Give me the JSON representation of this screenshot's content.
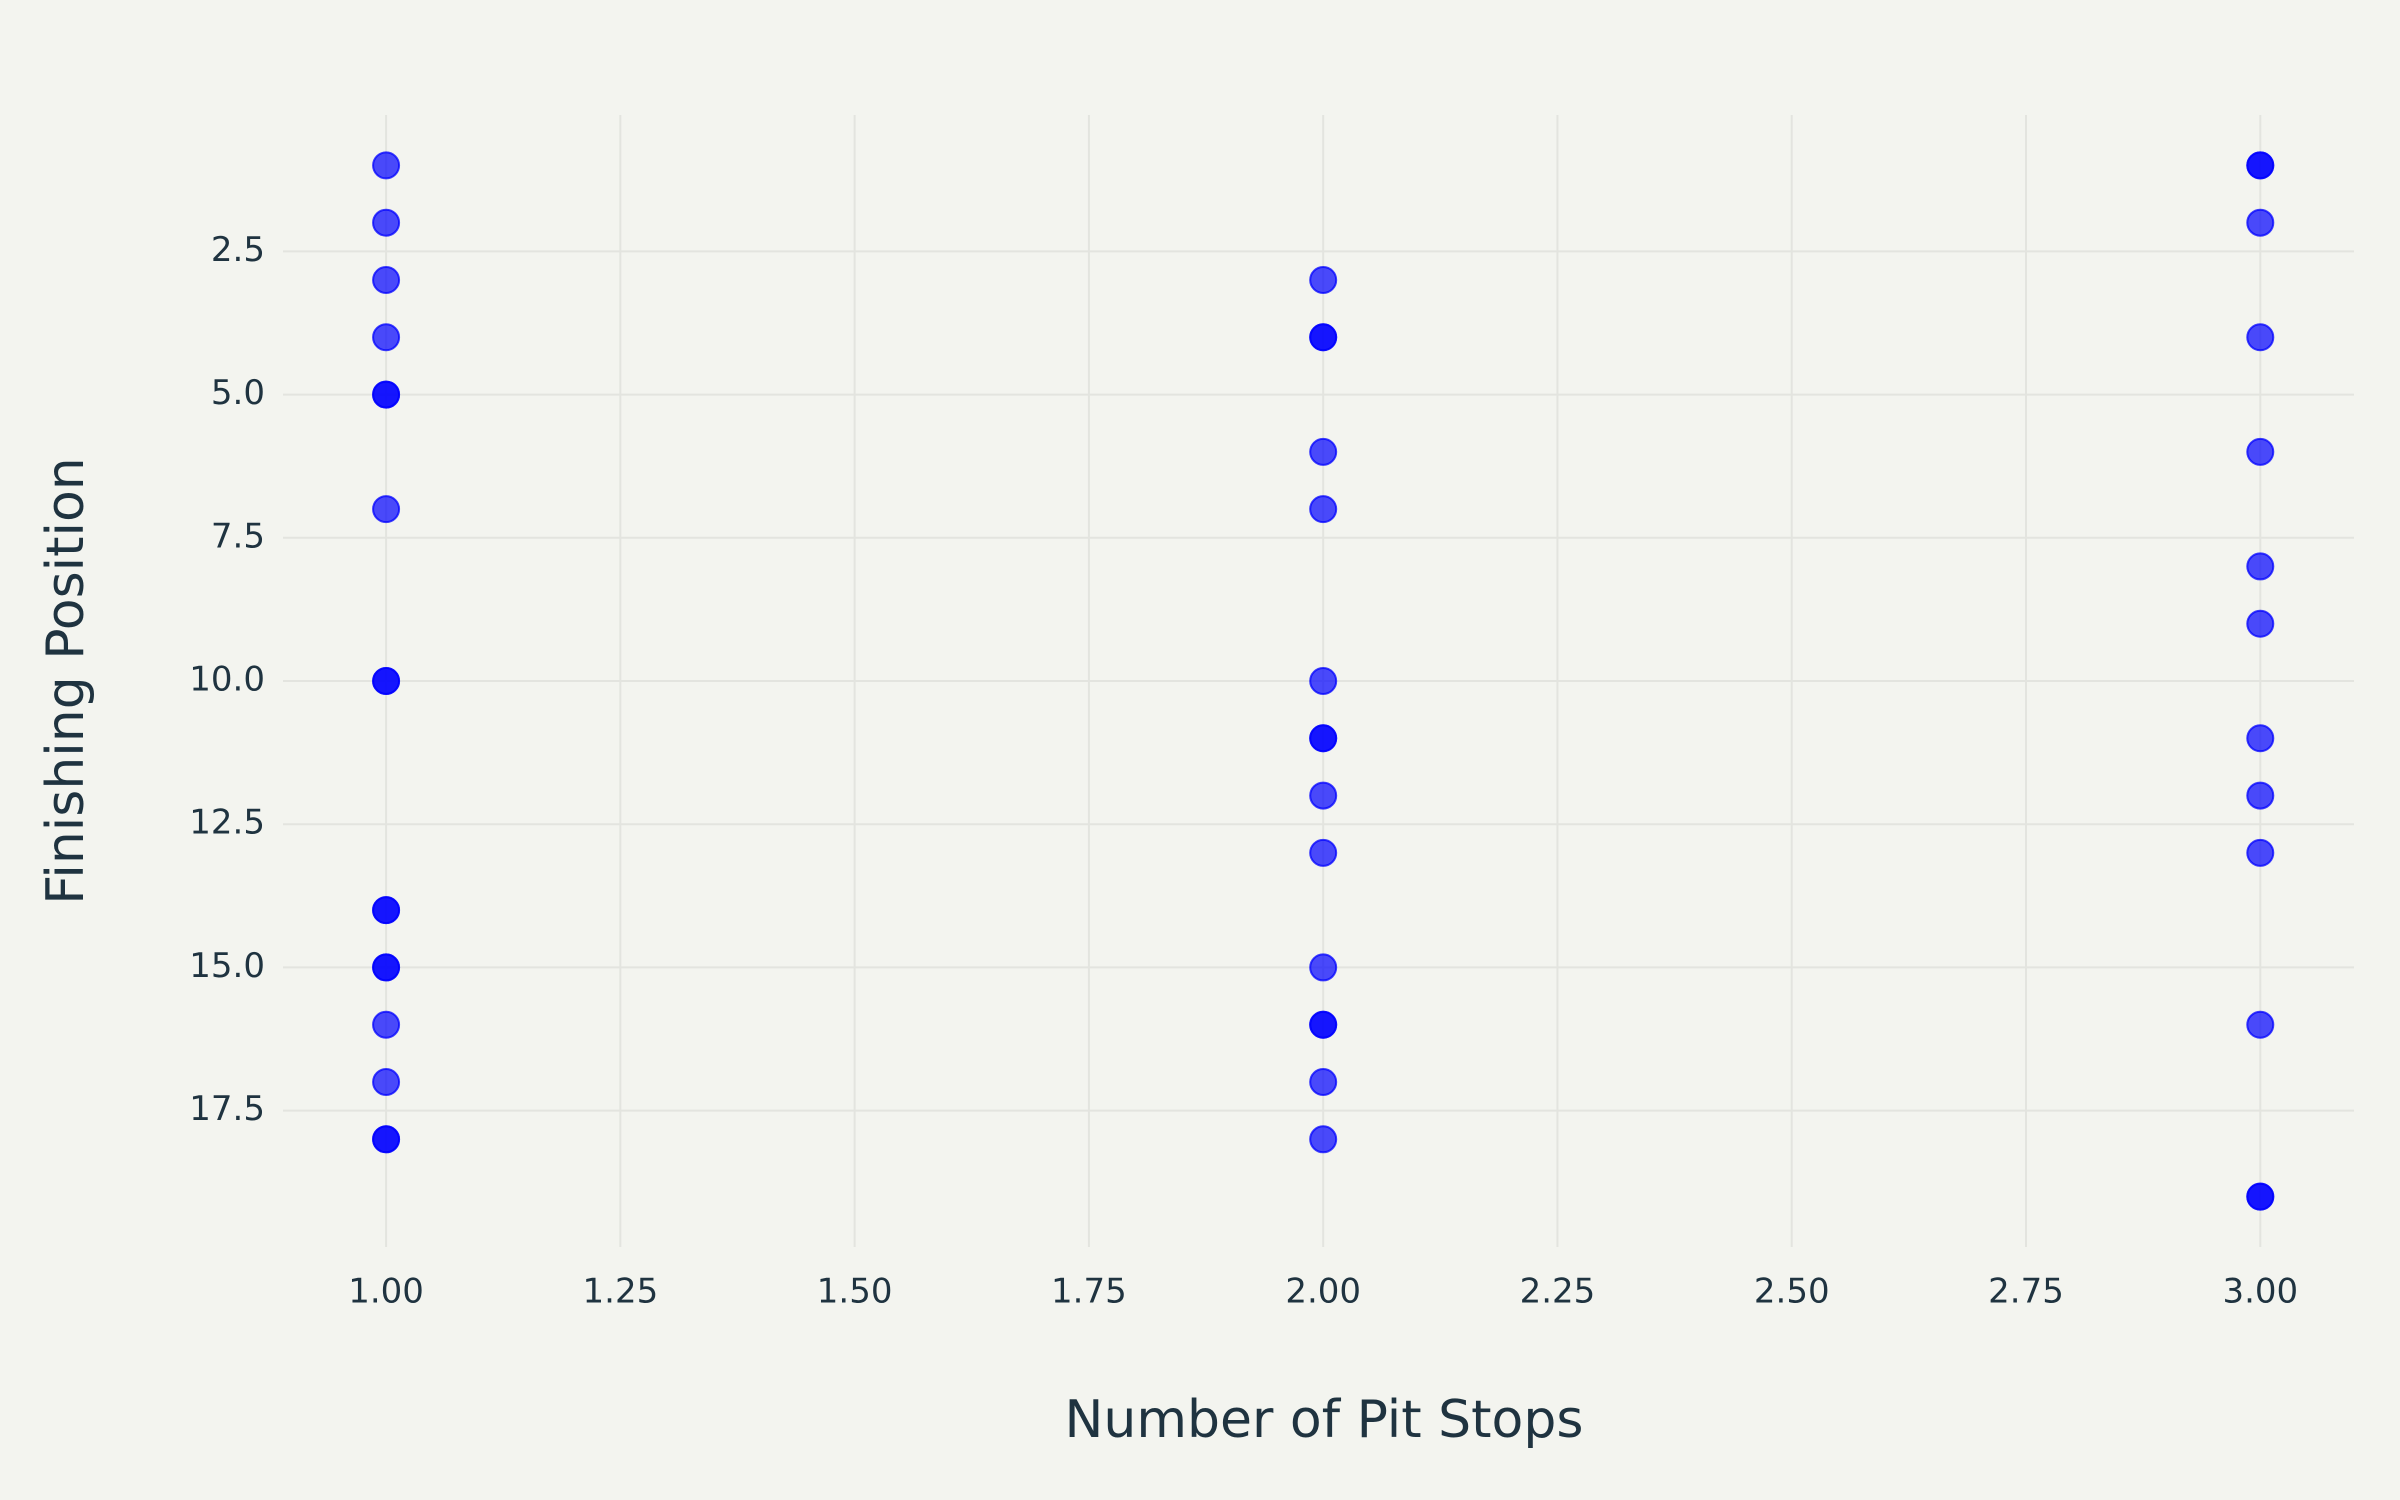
{
  "chart_data": {
    "type": "scatter",
    "x_label": "Number of Pit Stops",
    "y_label": "Finishing Position",
    "x": [
      1,
      1,
      1,
      1,
      1,
      1,
      1,
      1,
      1,
      1,
      1,
      1,
      1,
      1,
      1,
      1,
      1,
      2,
      2,
      2,
      2,
      2,
      2,
      2,
      2,
      2,
      2,
      2,
      2,
      2,
      2,
      2,
      3,
      3,
      3,
      3,
      3,
      3,
      3,
      3,
      3,
      3,
      3,
      3,
      3
    ],
    "values": [
      1,
      2,
      3,
      4,
      5,
      5,
      7,
      10,
      10,
      14,
      14,
      15,
      15,
      16,
      17,
      18,
      18,
      3,
      4,
      4,
      6,
      7,
      10,
      11,
      11,
      12,
      13,
      15,
      16,
      16,
      17,
      18,
      1,
      1,
      2,
      4,
      6,
      8,
      9,
      11,
      12,
      13,
      16,
      19,
      19
    ],
    "color": "#0000ff",
    "xlim": [
      0.89,
      3.1
    ],
    "ylim": [
      19.88,
      0.12
    ],
    "xticks": [
      {
        "value": 1,
        "label": "1.00"
      },
      1.25,
      {
        "value": 1.5,
        "label": "1.50"
      },
      1.75,
      {
        "value": 2,
        "label": "2.00"
      },
      2.25,
      {
        "value": 2.5,
        "label": "2.50"
      },
      2.75,
      {
        "value": 3,
        "label": "3.00"
      }
    ],
    "yticks": [
      2.5,
      {
        "value": 5,
        "label": "5.0"
      },
      7.5,
      {
        "value": 10,
        "label": "10.0"
      },
      12.5,
      {
        "value": 15,
        "label": "15.0"
      },
      17.5
    ],
    "grid": true
  }
}
